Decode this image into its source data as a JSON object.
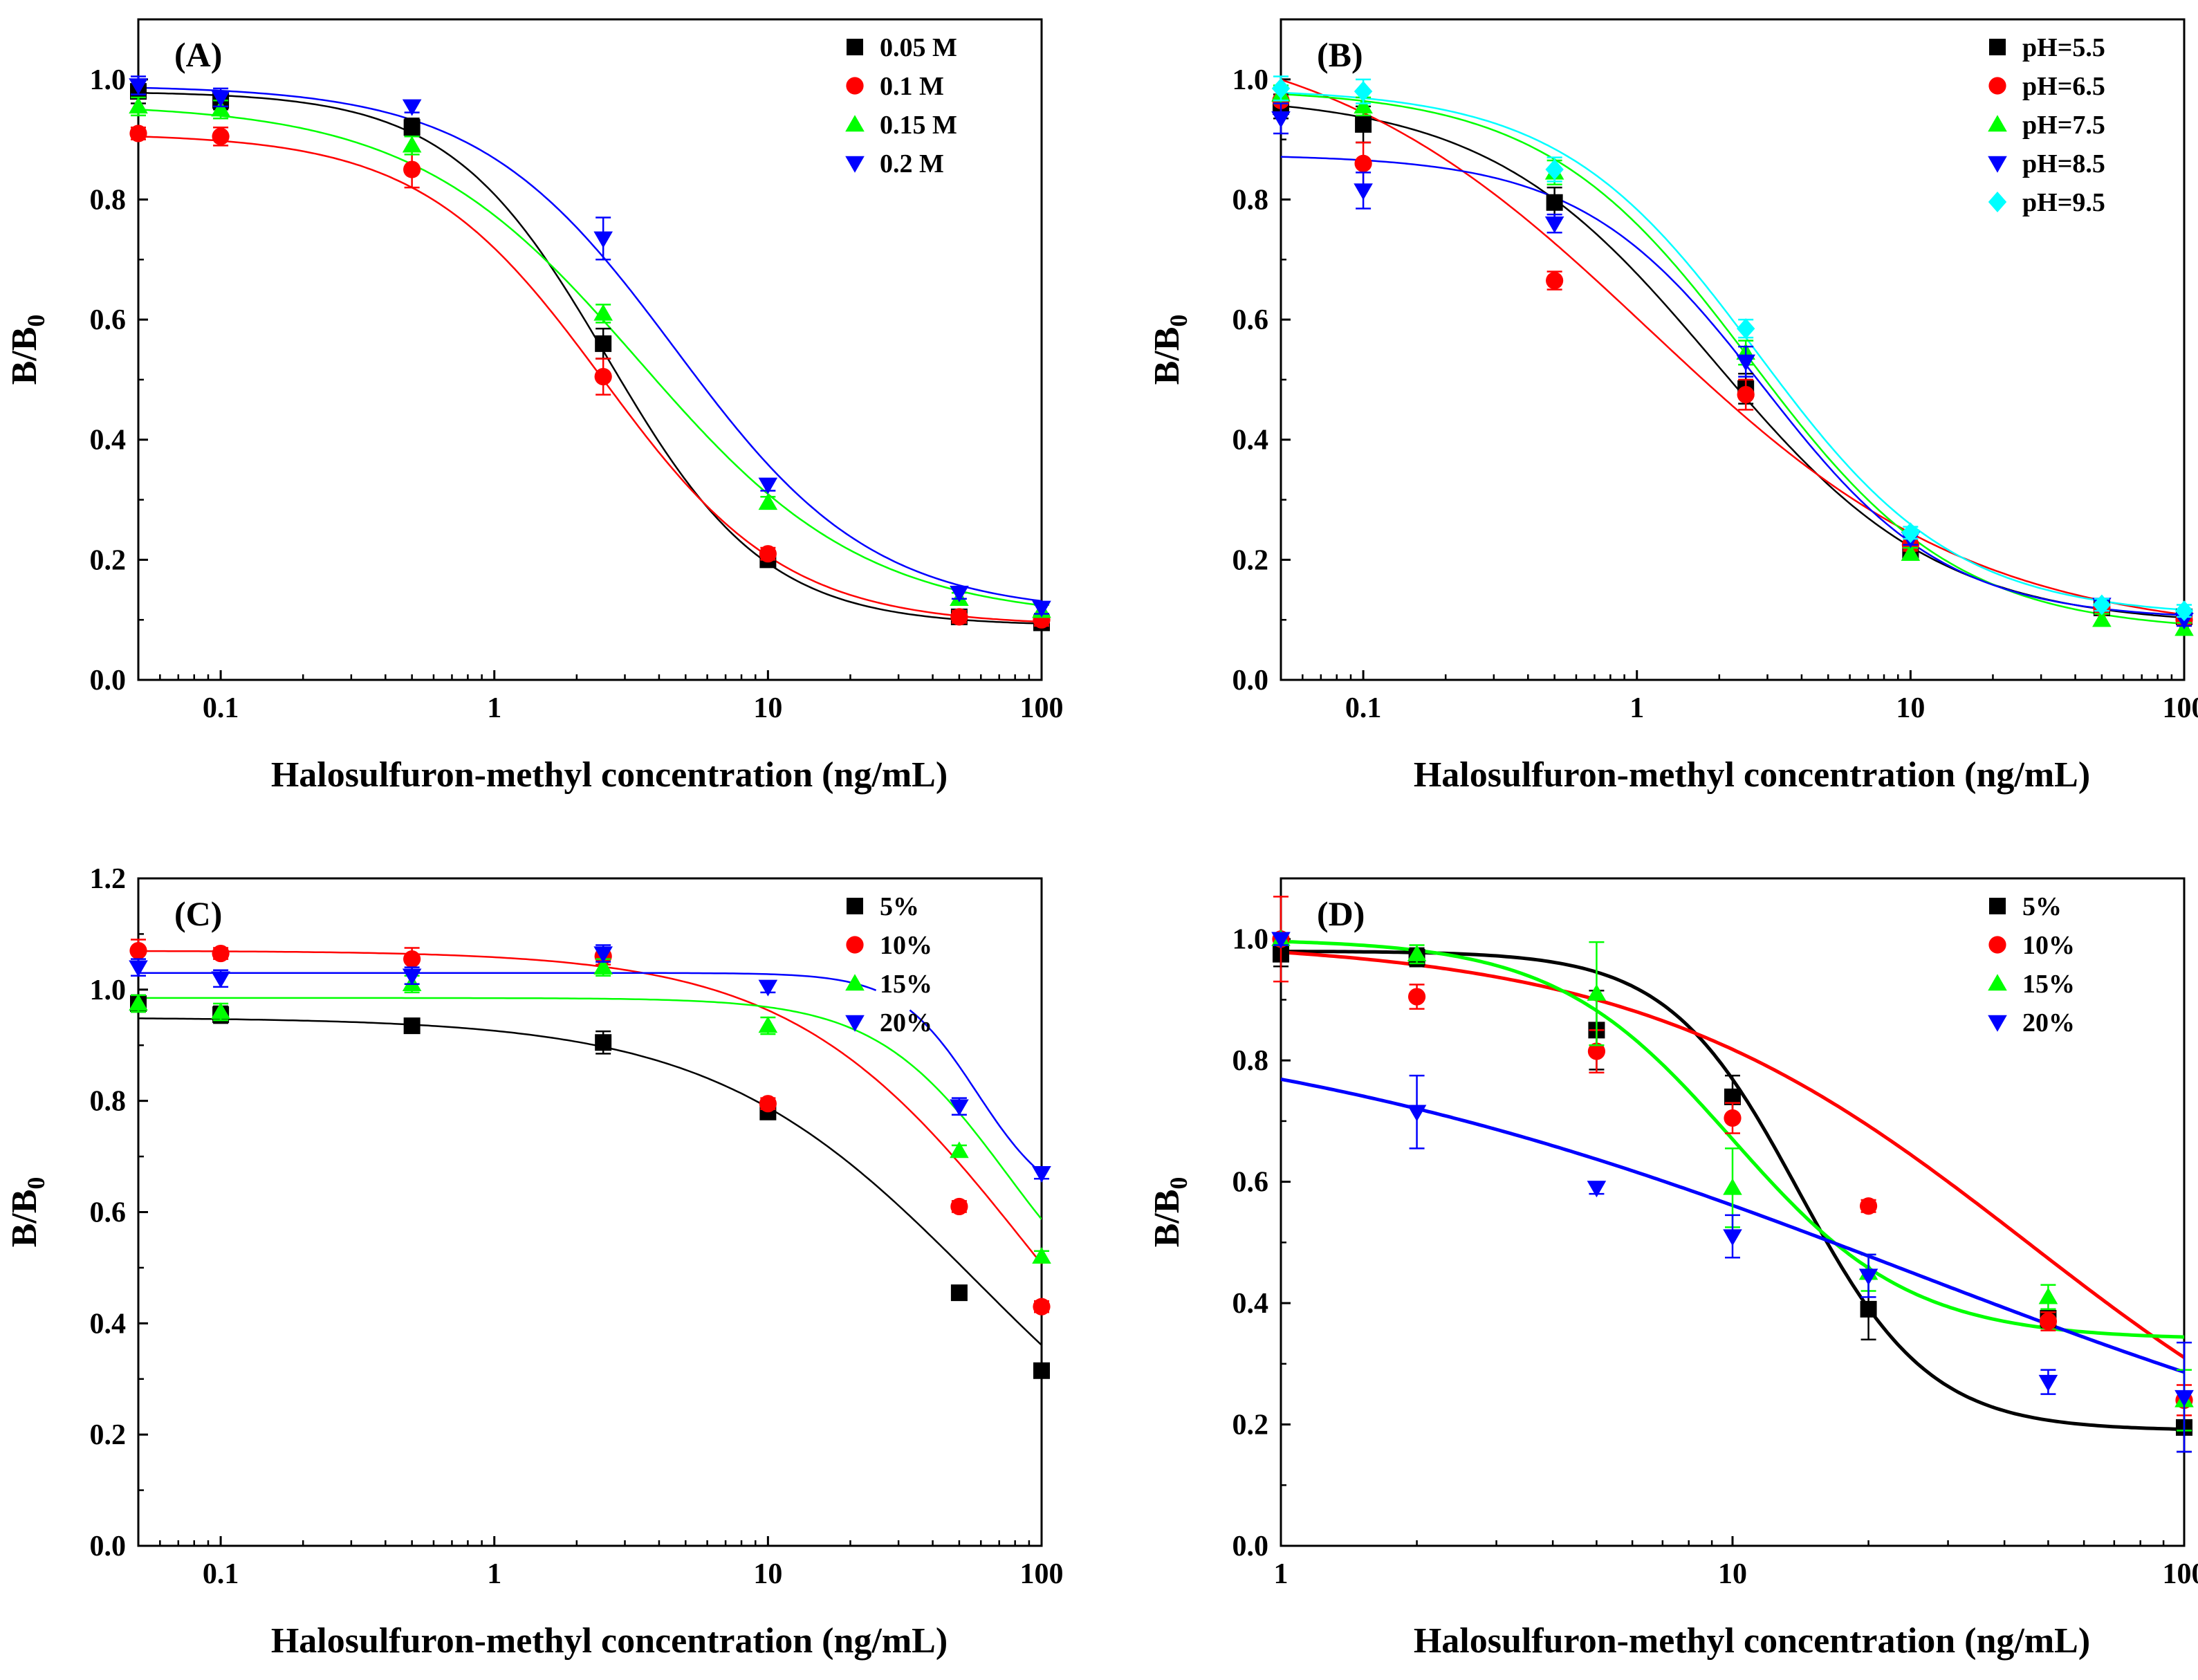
{
  "figure": {
    "xlabel": "Halosulfuron-methyl concentration (ng/mL)",
    "ylabel_main": "B/B",
    "ylabel_sub": "0"
  },
  "chart_data": [
    {
      "type": "scatter",
      "panel_label": "(A)",
      "title": "",
      "xlabel": "Halosulfuron-methyl concentration (ng/mL)",
      "ylabel": "B/B0",
      "xscale": "log",
      "xlim": [
        0.05,
        100
      ],
      "ylim": [
        0,
        1.1
      ],
      "x_ticks": [
        0.1,
        1,
        10,
        100
      ],
      "x_tick_labels": [
        "0.1",
        "1",
        "10",
        "100"
      ],
      "y_ticks": [
        0,
        0.2,
        0.4,
        0.6,
        0.8,
        1.0
      ],
      "y_tick_labels": [
        "0.0",
        "0.2",
        "0.4",
        "0.6",
        "0.8",
        "1.0"
      ],
      "legend_position": "top-right",
      "x": [
        0.05,
        0.1,
        0.5,
        2.5,
        10,
        50,
        100
      ],
      "series": [
        {
          "name": "0.05 M",
          "color": "#000000",
          "marker": "square",
          "values": [
            0.98,
            0.965,
            0.92,
            0.56,
            0.2,
            0.105,
            0.095
          ],
          "errors": [
            0.02,
            0.015,
            0.015,
            0.025,
            0.01,
            0.01,
            0.01
          ],
          "fit": {
            "top": 0.98,
            "bottom": 0.09,
            "ic50": 2.6,
            "slope": 1.5,
            "gap": null
          }
        },
        {
          "name": "0.1 M",
          "color": "#ff0000",
          "marker": "circle",
          "values": [
            0.91,
            0.905,
            0.85,
            0.505,
            0.21,
            0.105,
            0.1
          ],
          "errors": [
            0.01,
            0.015,
            0.03,
            0.03,
            0.01,
            0.01,
            0.01
          ],
          "fit": {
            "top": 0.91,
            "bottom": 0.09,
            "ic50": 2.5,
            "slope": 1.3,
            "gap": null
          }
        },
        {
          "name": "0.15 M",
          "color": "#00ff00",
          "marker": "triangle-up",
          "values": [
            0.955,
            0.95,
            0.89,
            0.61,
            0.295,
            0.135,
            0.115
          ],
          "errors": [
            0.015,
            0.015,
            0.015,
            0.015,
            0.01,
            0.01,
            0.01
          ],
          "fit": {
            "top": 0.96,
            "bottom": 0.1,
            "ic50": 3.4,
            "slope": 1.05,
            "gap": null
          }
        },
        {
          "name": "0.2 M",
          "color": "#0000ff",
          "marker": "triangle-down",
          "values": [
            0.99,
            0.97,
            0.955,
            0.735,
            0.325,
            0.145,
            0.12
          ],
          "errors": [
            0.015,
            0.015,
            0.01,
            0.035,
            0.01,
            0.01,
            0.01
          ],
          "fit": {
            "top": 0.99,
            "bottom": 0.11,
            "ic50": 4.6,
            "slope": 1.2,
            "gap": null
          }
        }
      ]
    },
    {
      "type": "scatter",
      "panel_label": "(B)",
      "title": "",
      "xlabel": "Halosulfuron-methyl concentration (ng/mL)",
      "ylabel": "B/B0",
      "xscale": "log",
      "xlim": [
        0.05,
        100
      ],
      "ylim": [
        0,
        1.1
      ],
      "x_ticks": [
        0.1,
        1,
        10,
        100
      ],
      "x_tick_labels": [
        "0.1",
        "1",
        "10",
        "100"
      ],
      "y_ticks": [
        0,
        0.2,
        0.4,
        0.6,
        0.8,
        1.0
      ],
      "y_tick_labels": [
        "0.0",
        "0.2",
        "0.4",
        "0.6",
        "0.8",
        "1.0"
      ],
      "legend_position": "top-right",
      "x": [
        0.05,
        0.1,
        0.5,
        2.5,
        10,
        50,
        100
      ],
      "series": [
        {
          "name": "pH=5.5",
          "color": "#000000",
          "marker": "square",
          "values": [
            0.955,
            0.925,
            0.795,
            0.485,
            0.215,
            0.12,
            0.105
          ],
          "errors": [
            0.02,
            0.03,
            0.025,
            0.025,
            0.01,
            0.01,
            0.01
          ],
          "fit": {
            "top": 0.975,
            "bottom": 0.09,
            "ic50": 1.9,
            "slope": 1.05,
            "gap": null
          }
        },
        {
          "name": "pH=6.5",
          "color": "#ff0000",
          "marker": "circle",
          "values": [
            0.965,
            0.86,
            0.665,
            0.475,
            0.225,
            0.12,
            0.1
          ],
          "errors": [
            0.02,
            0.035,
            0.015,
            0.025,
            0.01,
            0.01,
            0.01
          ],
          "fit": {
            "top": 1.1,
            "bottom": 0.07,
            "ic50": 1.1,
            "slope": 0.72,
            "gap": null
          }
        },
        {
          "name": "pH=7.5",
          "color": "#00ff00",
          "marker": "triangle-up",
          "values": [
            0.975,
            0.955,
            0.845,
            0.545,
            0.21,
            0.1,
            0.085
          ],
          "errors": [
            0.015,
            0.015,
            0.02,
            0.02,
            0.01,
            0.01,
            0.01
          ],
          "fit": {
            "top": 0.985,
            "bottom": 0.08,
            "ic50": 2.6,
            "slope": 1.15,
            "gap": null
          }
        },
        {
          "name": "pH=8.5",
          "color": "#0000ff",
          "marker": "triangle-down",
          "values": [
            0.935,
            0.815,
            0.76,
            0.53,
            0.235,
            0.125,
            0.1
          ],
          "errors": [
            0.025,
            0.03,
            0.015,
            0.025,
            0.01,
            0.01,
            0.01
          ],
          "fit": {
            "top": 0.875,
            "bottom": 0.1,
            "ic50": 2.9,
            "slope": 1.3,
            "gap": null
          }
        },
        {
          "name": "pH=9.5",
          "color": "#00ffff",
          "marker": "diamond",
          "values": [
            0.985,
            0.98,
            0.85,
            0.585,
            0.245,
            0.125,
            0.115
          ],
          "errors": [
            0.02,
            0.02,
            0.02,
            0.015,
            0.01,
            0.01,
            0.01
          ],
          "fit": {
            "top": 0.985,
            "bottom": 0.105,
            "ic50": 2.75,
            "slope": 1.2,
            "gap": null
          }
        }
      ]
    },
    {
      "type": "scatter",
      "panel_label": "(C)",
      "title": "",
      "xlabel": "Halosulfuron-methyl concentration (ng/mL)",
      "ylabel": "B/B0",
      "xscale": "log",
      "xlim": [
        0.05,
        100
      ],
      "ylim": [
        0,
        1.2
      ],
      "x_ticks": [
        0.1,
        1,
        10,
        100
      ],
      "x_tick_labels": [
        "0.1",
        "1",
        "10",
        "100"
      ],
      "y_ticks": [
        0,
        0.2,
        0.4,
        0.6,
        0.8,
        1.0,
        1.2
      ],
      "y_tick_labels": [
        "0.0",
        "0.2",
        "0.4",
        "0.6",
        "0.8",
        "1.0",
        "1.2"
      ],
      "legend_position": "top-right",
      "x": [
        0.05,
        0.1,
        0.5,
        2.5,
        10,
        50,
        100
      ],
      "series": [
        {
          "name": "5%",
          "color": "#000000",
          "marker": "square",
          "values": [
            0.975,
            0.955,
            0.935,
            0.905,
            0.78,
            0.455,
            0.315
          ],
          "errors": [
            0.015,
            0.015,
            0.01,
            0.02,
            0.01,
            0.01,
            0.01
          ],
          "fit": {
            "top": 0.95,
            "bottom": 0.0,
            "ic50": 58,
            "slope": 0.9,
            "gap": null
          }
        },
        {
          "name": "10%",
          "color": "#ff0000",
          "marker": "circle",
          "values": [
            1.07,
            1.065,
            1.055,
            1.06,
            0.795,
            0.61,
            0.43
          ],
          "errors": [
            0.02,
            0.01,
            0.02,
            0.015,
            0.01,
            0.01,
            0.01
          ],
          "fit": {
            "top": 1.07,
            "bottom": 0.0,
            "ic50": 90,
            "slope": 1.0,
            "gap": null
          }
        },
        {
          "name": "15%",
          "color": "#00ff00",
          "marker": "triangle-up",
          "values": [
            0.975,
            0.96,
            1.01,
            1.04,
            0.935,
            0.71,
            0.52
          ],
          "errors": [
            0.015,
            0.015,
            0.015,
            0.015,
            0.015,
            0.01,
            0.01
          ],
          "fit": {
            "top": 0.985,
            "bottom": 0.35,
            "ic50": 75,
            "slope": 1.8,
            "gap": null
          }
        },
        {
          "name": "20%",
          "color": "#0000ff",
          "marker": "triangle-down",
          "values": [
            1.04,
            1.02,
            1.025,
            1.065,
            1.005,
            0.79,
            0.67
          ],
          "errors": [
            0.015,
            0.015,
            0.015,
            0.015,
            0.01,
            0.015,
            0.01
          ],
          "fit": {
            "top": 1.03,
            "bottom": 0.6,
            "ic50": 58,
            "slope": 3.0,
            "gap": [
              25,
              33
            ]
          }
        }
      ]
    },
    {
      "type": "scatter",
      "panel_label": "(D)",
      "title": "",
      "xlabel": "Halosulfuron-methyl concentration (ng/mL)",
      "ylabel": "B/B0",
      "xscale": "log",
      "xlim": [
        1,
        100
      ],
      "ylim": [
        0,
        1.1
      ],
      "x_ticks": [
        1,
        10,
        100
      ],
      "x_tick_labels": [
        "1",
        "10",
        "100"
      ],
      "y_ticks": [
        0,
        0.2,
        0.4,
        0.6,
        0.8,
        1.0
      ],
      "y_tick_labels": [
        "0.0",
        "0.2",
        "0.4",
        "0.6",
        "0.8",
        "1.0"
      ],
      "legend_position": "top-right",
      "x": [
        1,
        2,
        5,
        10,
        20,
        50,
        100
      ],
      "series": [
        {
          "name": "5%",
          "color": "#000000",
          "marker": "square",
          "values": [
            0.975,
            0.97,
            0.85,
            0.74,
            0.39,
            0.375,
            0.195
          ],
          "errors": [
            0.02,
            0.015,
            0.065,
            0.035,
            0.05,
            0.015,
            0.04
          ],
          "fit": {
            "top": 0.98,
            "bottom": 0.19,
            "ic50": 14,
            "slope": 3.0,
            "gap": null
          }
        },
        {
          "name": "10%",
          "color": "#ff0000",
          "marker": "circle",
          "values": [
            1.0,
            0.905,
            0.815,
            0.705,
            0.56,
            0.37,
            0.24
          ],
          "errors": [
            0.07,
            0.02,
            0.035,
            0.025,
            0.01,
            0.015,
            0.025
          ],
          "fit": {
            "top": 1.0,
            "bottom": 0.0,
            "ic50": 45,
            "slope": 1.0,
            "gap": null
          }
        },
        {
          "name": "15%",
          "color": "#00ff00",
          "marker": "triangle-up",
          "values": [
            1.0,
            0.975,
            0.91,
            0.59,
            0.45,
            0.41,
            0.24
          ],
          "errors": [
            0.01,
            0.015,
            0.085,
            0.065,
            0.03,
            0.02,
            0.05
          ],
          "fit": {
            "top": 1.0,
            "bottom": 0.34,
            "ic50": 10,
            "slope": 2.2,
            "gap": null
          }
        },
        {
          "name": "20%",
          "color": "#0000ff",
          "marker": "triangle-down",
          "values": [
            1.0,
            0.715,
            0.59,
            0.51,
            0.445,
            0.27,
            0.245
          ],
          "errors": [
            0.01,
            0.06,
            0.01,
            0.035,
            0.035,
            0.02,
            0.09
          ],
          "fit": {
            "top": 0.9,
            "bottom": 0.0,
            "ic50": 25,
            "slope": 0.55,
            "gap": null
          }
        }
      ]
    }
  ]
}
